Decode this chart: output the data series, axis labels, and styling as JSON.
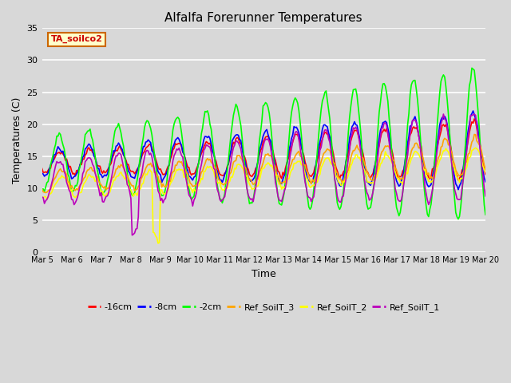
{
  "title": "Alfalfa Forerunner Temperatures",
  "xlabel": "Time",
  "ylabel": "Temperatures (C)",
  "annotation": "TA_soilco2",
  "ylim": [
    0,
    35
  ],
  "plot_bg_color": "#d8d8d8",
  "fig_bg_color": "#d8d8d8",
  "grid_color": "#ffffff",
  "series": [
    {
      "label": "-16cm",
      "color": "#ff0000"
    },
    {
      "label": "-8cm",
      "color": "#0000ff"
    },
    {
      "label": "-2cm",
      "color": "#00ff00"
    },
    {
      "label": "Ref_SoilT_3",
      "color": "#ffa500"
    },
    {
      "label": "Ref_SoilT_2",
      "color": "#ffff00"
    },
    {
      "label": "Ref_SoilT_1",
      "color": "#bb00bb"
    }
  ],
  "xtick_labels": [
    "Mar 5",
    "Mar 6",
    "Mar 7",
    "Mar 8",
    "Mar 9",
    "Mar 10",
    "Mar 11",
    "Mar 12",
    "Mar 13",
    "Mar 14",
    "Mar 15",
    "Mar 16",
    "Mar 17",
    "Mar 18",
    "Mar 19",
    "Mar 20"
  ],
  "ytick_labels": [
    0,
    5,
    10,
    15,
    20,
    25,
    30,
    35
  ]
}
